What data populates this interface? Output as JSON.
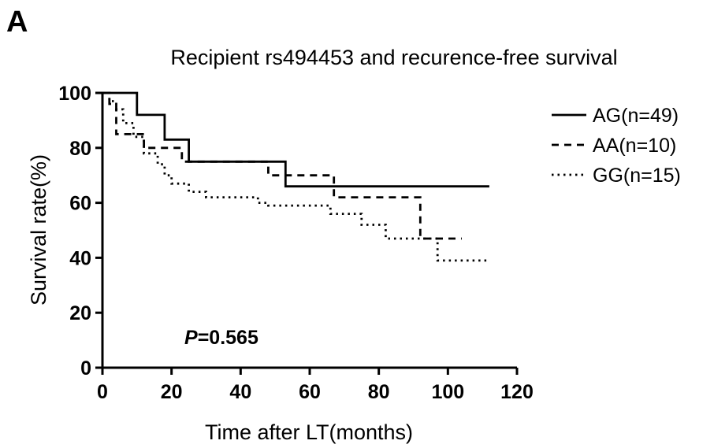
{
  "panel_label": "A",
  "p_value": {
    "prefix": "P",
    "rest": "=0.565"
  },
  "chart_data": {
    "type": "line",
    "subtype": "kaplan-meier-step",
    "title": "Recipient rs494453 and recurence-free survival",
    "xlabel": "Time after LT(months)",
    "ylabel": "Survival rate(%)",
    "xlim": [
      0,
      120
    ],
    "ylim": [
      0,
      100
    ],
    "xticks": [
      0,
      20,
      40,
      60,
      80,
      100,
      120
    ],
    "yticks": [
      0,
      20,
      40,
      60,
      80,
      100
    ],
    "grid": false,
    "legend_position": "top-right",
    "series": [
      {
        "name": "AG(n=49)",
        "style": "solid",
        "x": [
          0,
          10,
          10,
          18,
          18,
          25,
          25,
          53,
          53,
          112
        ],
        "y": [
          100,
          100,
          92,
          92,
          83,
          83,
          75,
          75,
          66,
          66
        ]
      },
      {
        "name": "AA(n=10)",
        "style": "dashed",
        "x": [
          0,
          2,
          2,
          4,
          4,
          12,
          12,
          23,
          23,
          48,
          48,
          67,
          67,
          92,
          92,
          104
        ],
        "y": [
          100,
          100,
          96,
          96,
          85,
          85,
          80,
          80,
          75,
          75,
          70,
          70,
          62,
          62,
          47,
          47
        ]
      },
      {
        "name": "GG(n=15)",
        "style": "dotted",
        "x": [
          0,
          2,
          2,
          4,
          4,
          6,
          6,
          9,
          9,
          12,
          12,
          16,
          16,
          18,
          18,
          20,
          20,
          25,
          25,
          30,
          30,
          45,
          45,
          48,
          48,
          66,
          66,
          75,
          75,
          82,
          82,
          97,
          97,
          112
        ],
        "y": [
          100,
          100,
          97,
          97,
          94,
          94,
          89,
          89,
          84,
          84,
          78,
          78,
          74,
          74,
          70,
          70,
          67,
          67,
          64,
          64,
          62,
          62,
          60,
          60,
          59,
          59,
          56,
          56,
          52,
          52,
          47,
          47,
          39,
          39
        ]
      }
    ]
  }
}
